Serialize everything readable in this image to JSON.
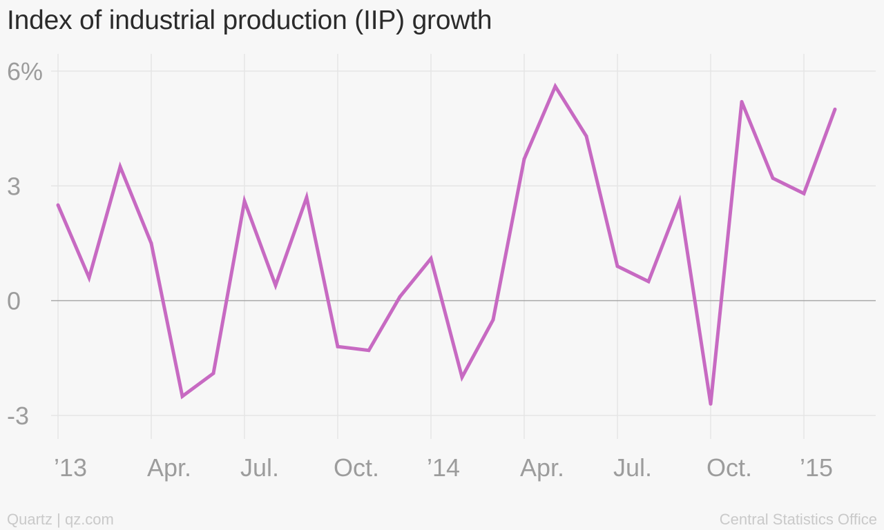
{
  "chart_data": {
    "type": "line",
    "title": "Index of industrial production (IIP) growth",
    "xlabel": "",
    "ylabel": "",
    "y_ticks": [
      "6%",
      "3",
      "0",
      "-3"
    ],
    "y_tick_values": [
      6,
      3,
      0,
      -3
    ],
    "ylim": [
      -3.3,
      6
    ],
    "x_ticks": [
      "’13",
      "Apr.",
      "Jul.",
      "Oct.",
      "’14",
      "Apr.",
      "Jul.",
      "Oct.",
      "’15"
    ],
    "x_tick_months": [
      "2013-01",
      "2013-04",
      "2013-07",
      "2013-10",
      "2014-01",
      "2014-04",
      "2014-07",
      "2014-10",
      "2015-01"
    ],
    "grid": true,
    "line_color": "#c76ac2",
    "series": [
      {
        "x": [
          "2013-01",
          "2013-02",
          "2013-03",
          "2013-04",
          "2013-05",
          "2013-06",
          "2013-07",
          "2013-08",
          "2013-09",
          "2013-10",
          "2013-11",
          "2013-12",
          "2014-01",
          "2014-02",
          "2014-03",
          "2014-04",
          "2014-05",
          "2014-06",
          "2014-07",
          "2014-08",
          "2014-09",
          "2014-10",
          "2014-11",
          "2014-12",
          "2015-01",
          "2015-02"
        ],
        "values": [
          2.5,
          0.6,
          3.5,
          1.5,
          -2.5,
          -1.9,
          2.6,
          0.4,
          2.7,
          -1.2,
          -1.3,
          0.1,
          1.1,
          -2.0,
          -0.5,
          3.7,
          5.6,
          4.3,
          0.9,
          0.5,
          2.6,
          -2.7,
          5.2,
          3.2,
          2.8,
          5.0
        ]
      }
    ]
  },
  "footer": {
    "source_left": "Quartz | qz.com",
    "source_right": "Central Statistics Office"
  }
}
